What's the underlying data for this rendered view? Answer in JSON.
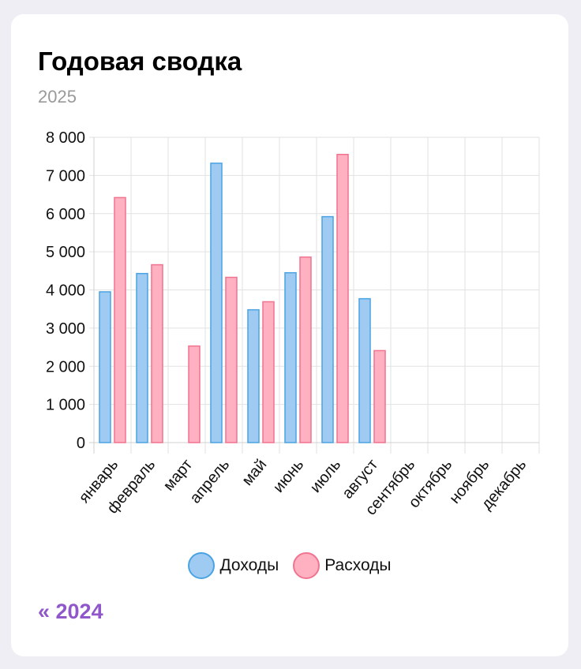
{
  "card": {
    "title": "Годовая сводка",
    "subtitle": "2025",
    "prev_link": "« 2024"
  },
  "chart_data": {
    "type": "bar",
    "categories": [
      "январь",
      "февраль",
      "март",
      "апрель",
      "май",
      "июнь",
      "июль",
      "август",
      "сентябрь",
      "октябрь",
      "ноябрь",
      "декабрь"
    ],
    "series": [
      {
        "name": "Доходы",
        "values": [
          3950,
          4430,
          null,
          7320,
          3480,
          4450,
          5920,
          3770,
          null,
          null,
          null,
          null
        ],
        "color": "#9fcbf3",
        "border": "#4aa3e3"
      },
      {
        "name": "Расходы",
        "values": [
          6420,
          4660,
          2530,
          4330,
          3690,
          4860,
          7550,
          2410,
          null,
          null,
          null,
          null
        ],
        "color": "#ffb1c1",
        "border": "#f0738f"
      }
    ],
    "ylim": [
      0,
      8000
    ],
    "yticks": [
      0,
      1000,
      2000,
      3000,
      4000,
      5000,
      6000,
      7000,
      8000
    ],
    "ytick_labels": [
      "0",
      "1 000",
      "2 000",
      "3 000",
      "4 000",
      "5 000",
      "6 000",
      "7 000",
      "8 000"
    ],
    "grid": true,
    "legend": "bottom"
  }
}
